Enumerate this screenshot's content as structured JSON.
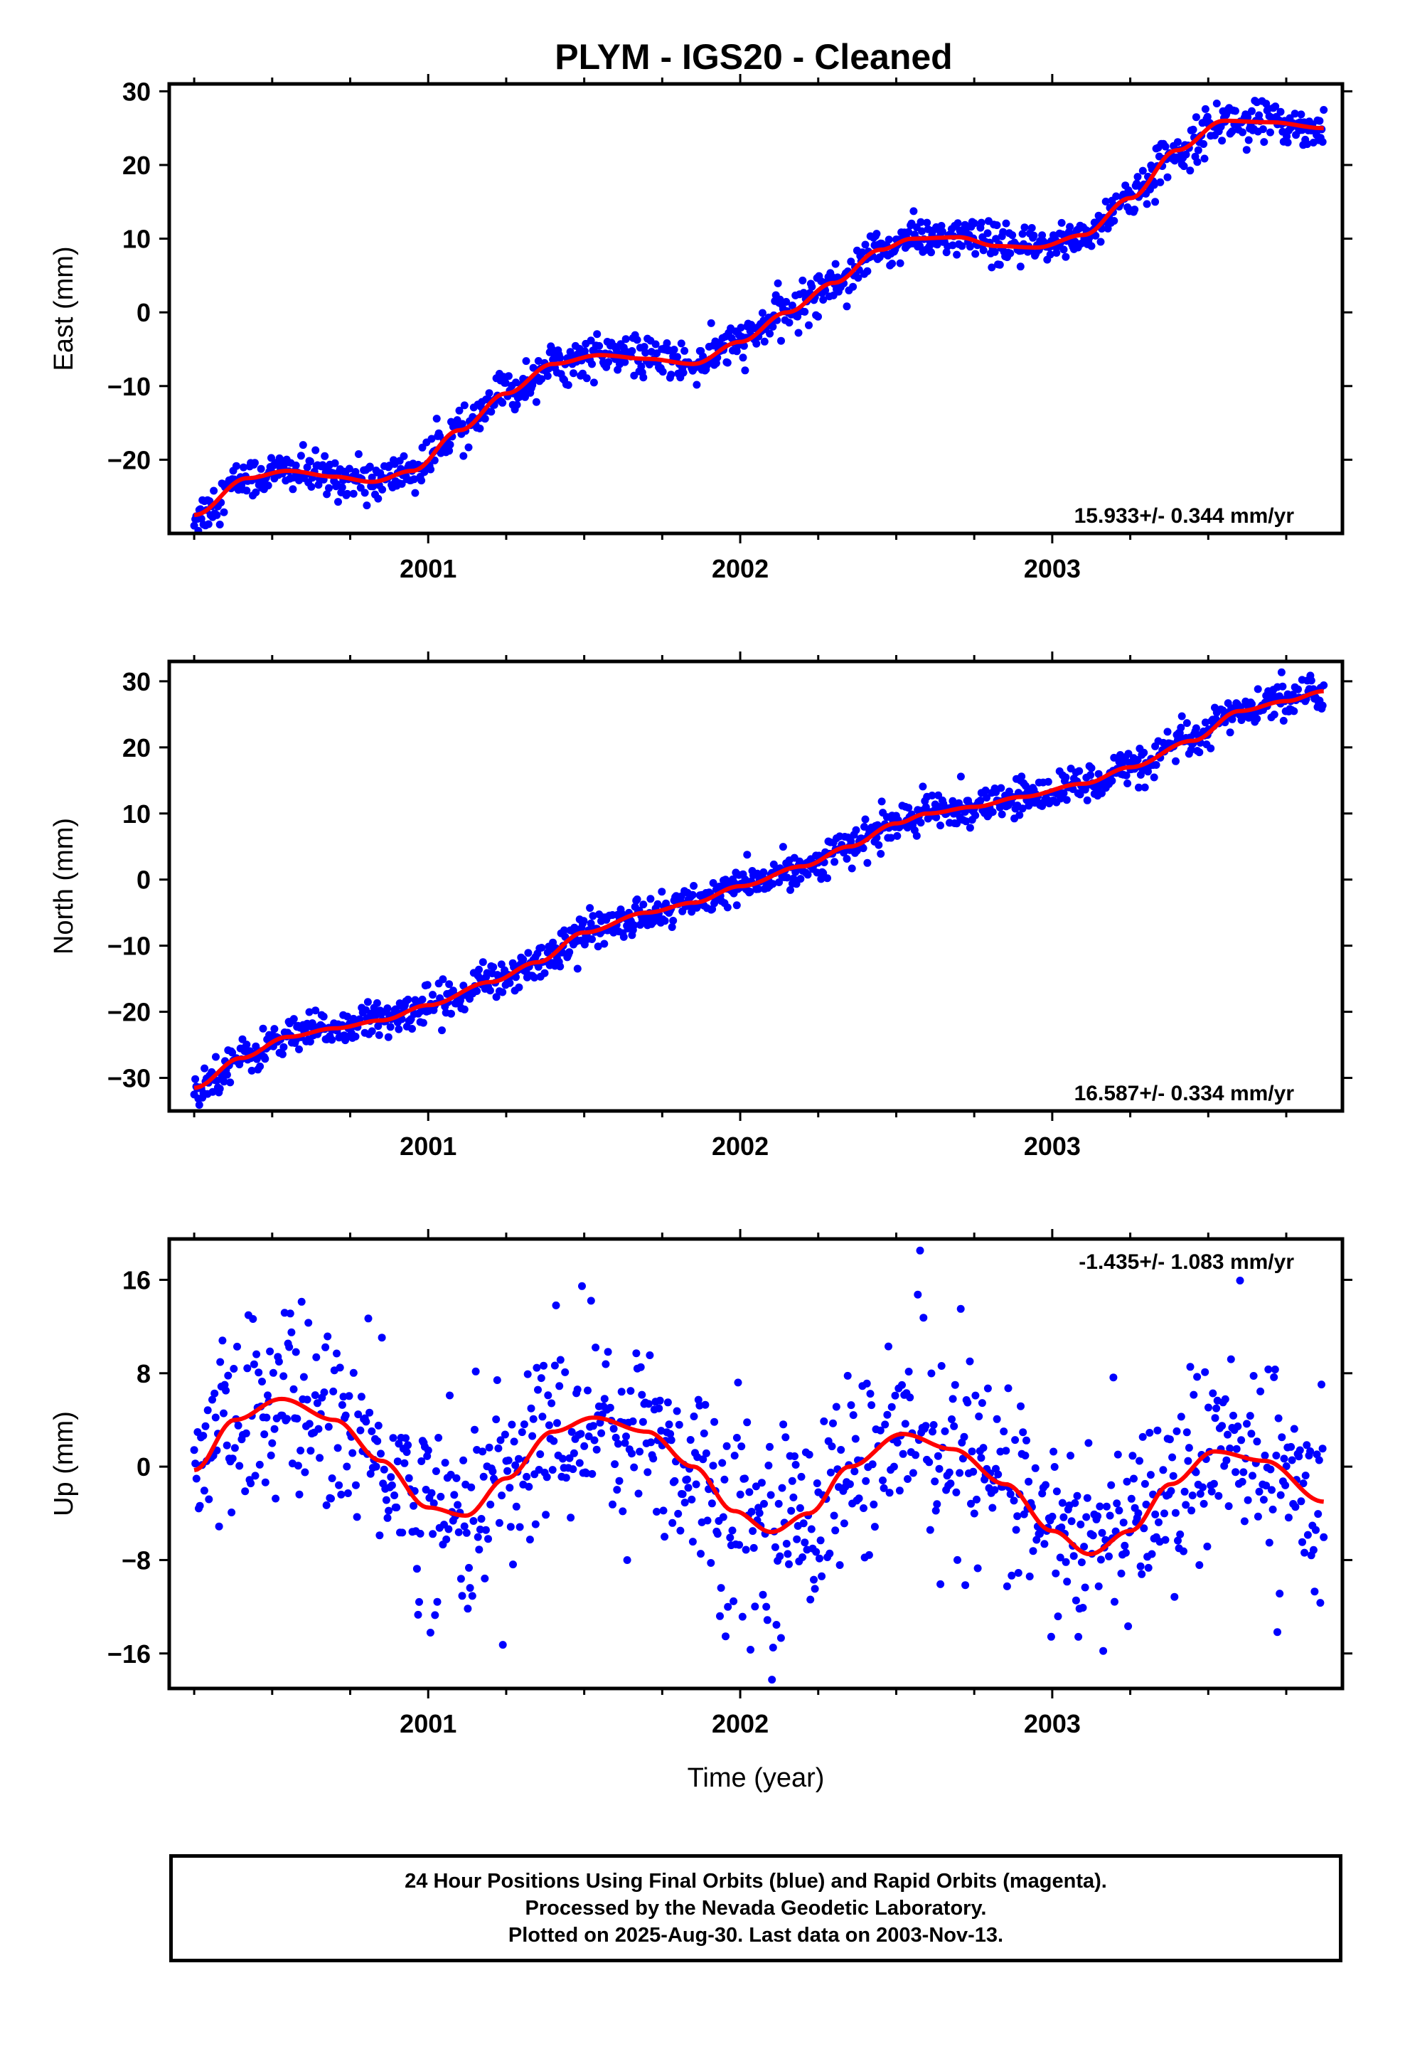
{
  "title": "PLYM  - IGS20 - Cleaned",
  "footer": {
    "line1": "24 Hour Positions Using Final Orbits (blue) and Rapid Orbits (magenta).",
    "line2": "Processed by the Nevada Geodetic Laboratory.",
    "line3": "Plotted on 2025-Aug-30. Last data on 2003-Nov-13."
  },
  "colors": {
    "points": "#0000ff",
    "fit": "#ff0000",
    "axes": "#000000"
  },
  "chart_data": [
    {
      "type": "scatter",
      "ylabel": "East (mm)",
      "xlabel": "",
      "xlim": [
        2000.17,
        2003.93
      ],
      "ylim": [
        -30,
        31
      ],
      "yticks": [
        -20,
        -10,
        0,
        10,
        20,
        30
      ],
      "xticks": [
        2001,
        2002,
        2003
      ],
      "rate_label": "15.933+/- 0.344 mm/yr",
      "rate_position": "bottom-right",
      "noise": 1.4,
      "series": [
        {
          "kind": "points",
          "x_start": 2000.25,
          "x_end": 2003.87,
          "count": 1100
        },
        {
          "kind": "fit",
          "x": [
            2000.25,
            2000.42,
            2000.55,
            2000.7,
            2000.82,
            2000.95,
            2001.1,
            2001.25,
            2001.4,
            2001.55,
            2001.7,
            2001.85,
            2002.0,
            2002.15,
            2002.3,
            2002.45,
            2002.55,
            2002.7,
            2002.82,
            2002.95,
            2003.1,
            2003.25,
            2003.4,
            2003.55,
            2003.7,
            2003.87
          ],
          "y": [
            -27.5,
            -22.5,
            -21.5,
            -22.3,
            -23.0,
            -21.5,
            -16.0,
            -11.0,
            -7.0,
            -5.8,
            -6.3,
            -7.0,
            -4.0,
            0.0,
            4.0,
            8.5,
            10.0,
            10.2,
            9.0,
            8.8,
            10.5,
            15.5,
            22.0,
            26.0,
            25.8,
            25.0
          ]
        }
      ]
    },
    {
      "type": "scatter",
      "ylabel": "North (mm)",
      "xlabel": "",
      "xlim": [
        2000.17,
        2003.93
      ],
      "ylim": [
        -35,
        33
      ],
      "yticks": [
        -30,
        -20,
        -10,
        0,
        10,
        20,
        30
      ],
      "xticks": [
        2001,
        2002,
        2003
      ],
      "rate_label": "16.587+/- 0.334 mm/yr",
      "rate_position": "bottom-right",
      "noise": 1.4,
      "series": [
        {
          "kind": "points",
          "x_start": 2000.25,
          "x_end": 2003.87,
          "count": 1100
        },
        {
          "kind": "fit",
          "x": [
            2000.25,
            2000.4,
            2000.55,
            2000.7,
            2000.85,
            2001.0,
            2001.2,
            2001.35,
            2001.5,
            2001.7,
            2001.85,
            2002.0,
            2002.2,
            2002.35,
            2002.5,
            2002.6,
            2002.75,
            2002.9,
            2003.1,
            2003.25,
            2003.45,
            2003.6,
            2003.75,
            2003.87
          ],
          "y": [
            -31.5,
            -27.0,
            -23.8,
            -22.5,
            -21.3,
            -19.0,
            -15.5,
            -12.5,
            -8.0,
            -5.0,
            -3.5,
            -1.0,
            2.0,
            5.0,
            8.5,
            10.0,
            11.0,
            12.5,
            14.5,
            17.0,
            21.0,
            25.5,
            27.0,
            28.5
          ]
        }
      ]
    },
    {
      "type": "scatter",
      "ylabel": "Up (mm)",
      "xlabel": "Time (year)",
      "xlim": [
        2000.17,
        2003.93
      ],
      "ylim": [
        -19,
        19.5
      ],
      "yticks": [
        -16,
        -8,
        0,
        8,
        16
      ],
      "xticks": [
        2001,
        2002,
        2003
      ],
      "rate_label": "-1.435+/- 1.083 mm/yr",
      "rate_position": "top-right",
      "noise": 4.2,
      "series": [
        {
          "kind": "points",
          "x_start": 2000.25,
          "x_end": 2003.87,
          "count": 1000
        },
        {
          "kind": "fit",
          "x": [
            2000.25,
            2000.38,
            2000.53,
            2000.7,
            2000.85,
            2001.0,
            2001.12,
            2001.25,
            2001.4,
            2001.53,
            2001.7,
            2001.85,
            2001.98,
            2002.1,
            2002.22,
            2002.35,
            2002.52,
            2002.68,
            2002.85,
            2003.0,
            2003.12,
            2003.25,
            2003.38,
            2003.52,
            2003.68,
            2003.87
          ],
          "y": [
            -0.3,
            4.0,
            5.8,
            4.0,
            0.5,
            -3.5,
            -4.2,
            -1.0,
            3.0,
            4.2,
            3.0,
            0.0,
            -3.8,
            -5.6,
            -4.0,
            0.0,
            2.8,
            1.5,
            -1.5,
            -5.5,
            -7.5,
            -5.5,
            -1.5,
            1.3,
            0.5,
            -3.0
          ]
        }
      ]
    }
  ]
}
